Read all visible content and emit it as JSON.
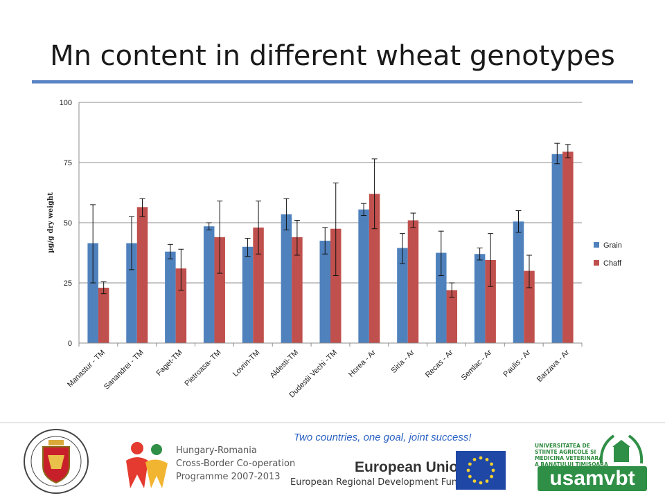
{
  "title": "Mn content in different wheat genotypes",
  "chart_data": {
    "type": "bar",
    "title": "Mn content in different wheat genotypes",
    "xlabel": "",
    "ylabel": "µg/g dry weight",
    "ylim": [
      0,
      100
    ],
    "yticks": [
      0,
      25,
      50,
      75,
      100
    ],
    "grid": true,
    "legend_position": "right",
    "categories": [
      "Manastur - TM",
      "Sanandrei - TM",
      "Faget-TM",
      "Pietroasa- TM",
      "Lovrin-TM",
      "Aldesti-TM",
      "Dudestii Vechi -TM",
      "Horea - Ar",
      "Siria - Ar",
      "Recas - Ar",
      "Semlac - Ar",
      "Paulis - Ar",
      "Barzava - Ar"
    ],
    "series": [
      {
        "name": "Grain",
        "color": "#4f81bd",
        "values": [
          41.5,
          41.5,
          38,
          48.5,
          40,
          53.5,
          42.5,
          55.5,
          39.5,
          37.5,
          37,
          50.5,
          78.5
        ],
        "err_low": [
          25,
          30.5,
          35,
          47,
          36,
          47,
          37,
          53,
          33,
          28,
          34.5,
          46,
          74.5
        ],
        "err_high": [
          57.5,
          52.5,
          41,
          50,
          43.5,
          60,
          48,
          58,
          45.5,
          46.5,
          39.5,
          55,
          83
        ]
      },
      {
        "name": "Chaff",
        "color": "#c0504d",
        "values": [
          23,
          56.5,
          31,
          44,
          48,
          44,
          47.5,
          62,
          51,
          22,
          34.5,
          30,
          79.5
        ],
        "err_low": [
          20.5,
          52.5,
          22,
          29,
          37,
          36.5,
          28,
          47.5,
          48,
          19,
          23.5,
          23,
          77
        ],
        "err_high": [
          25.5,
          60,
          39,
          59,
          59,
          51,
          66.5,
          76.5,
          54,
          25,
          45.5,
          36.5,
          82.5
        ]
      }
    ]
  },
  "footer": {
    "slogan": "Two countries, one goal, joint success!",
    "programme_lines": [
      "Hungary-Romania",
      "Cross-Border Co-operation",
      "Programme 2007-2013"
    ],
    "eu_title": "European Union",
    "eu_fund": "European Regional Development Fund",
    "usamvbt_lines": [
      "UNIVERSITATEA DE",
      "STIINTE AGRICOLE SI",
      "MEDICINA VETERINARA",
      "A BANATULUI TIMISOARA"
    ],
    "usamvbt_name": "usamvbt"
  }
}
